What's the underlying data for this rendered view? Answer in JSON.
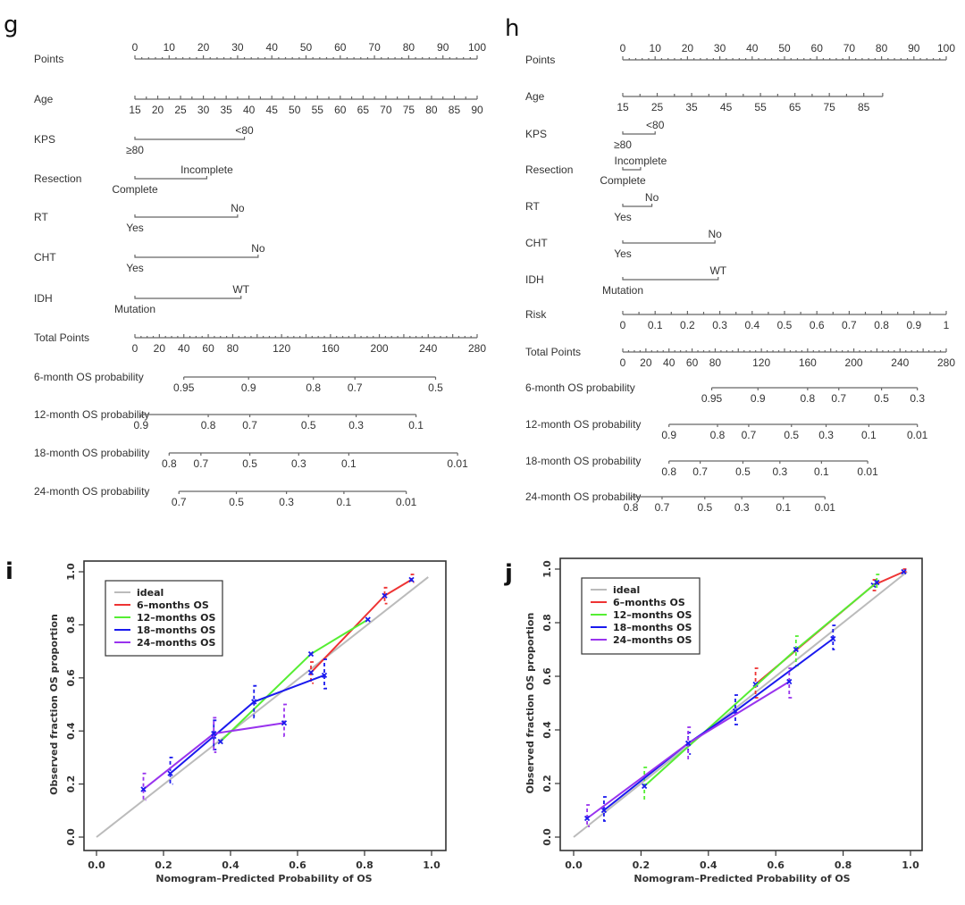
{
  "panels": {
    "g": {
      "letter": "g",
      "rows": [
        {
          "label": "Points",
          "kind": "scale",
          "ticks": [
            "0",
            "10",
            "20",
            "30",
            "40",
            "50",
            "60",
            "70",
            "80",
            "90",
            "100"
          ]
        },
        {
          "label": "Age",
          "kind": "scale-below",
          "ticks": [
            "15",
            "20",
            "25",
            "30",
            "35",
            "40",
            "45",
            "50",
            "55",
            "60",
            "65",
            "70",
            "75",
            "80",
            "85",
            "90"
          ],
          "points_range": [
            0,
            100
          ]
        },
        {
          "label": "KPS",
          "kind": "categorical",
          "low": "≥80",
          "high": "<80",
          "points": 32
        },
        {
          "label": "Resection",
          "kind": "categorical",
          "low": "Complete",
          "high": "Incomplete",
          "points": 21
        },
        {
          "label": "RT",
          "kind": "categorical",
          "low": "Yes",
          "high": "No",
          "points": 30
        },
        {
          "label": "CHT",
          "kind": "categorical",
          "low": "Yes",
          "high": "No",
          "points": 36
        },
        {
          "label": "IDH",
          "kind": "categorical",
          "low": "Mutation",
          "high": "WT",
          "points": 31
        },
        {
          "label": "Total Points",
          "kind": "scale-below",
          "ticks": [
            "0",
            "20",
            "40",
            "60",
            "80",
            "120",
            "160",
            "200",
            "240",
            "280"
          ],
          "tick_values": [
            0,
            20,
            40,
            60,
            80,
            120,
            160,
            200,
            240,
            280
          ],
          "max": 280
        },
        {
          "label": "6-month OS probability",
          "kind": "prob",
          "ticks": [
            "0.95",
            "0.9",
            "0.8",
            "0.7",
            "0.5"
          ],
          "tick_totals": [
            40,
            93,
            146,
            180,
            246
          ]
        },
        {
          "label": "12-month OS probability",
          "kind": "prob",
          "ticks": [
            "0.9",
            "0.8",
            "0.7",
            "0.5",
            "0.3",
            "0.1"
          ],
          "tick_totals": [
            5,
            60,
            94,
            142,
            181,
            230
          ]
        },
        {
          "label": "18-month OS probability",
          "kind": "prob",
          "ticks": [
            "0.8",
            "0.7",
            "0.5",
            "0.3",
            "0.1",
            "0.01"
          ],
          "tick_totals": [
            28,
            54,
            94,
            134,
            175,
            264
          ]
        },
        {
          "label": "24-month OS probability",
          "kind": "prob",
          "ticks": [
            "0.7",
            "0.5",
            "0.3",
            "0.1",
            "0.01"
          ],
          "tick_totals": [
            36,
            83,
            124,
            171,
            222
          ]
        }
      ]
    },
    "h": {
      "letter": "h",
      "rows": [
        {
          "label": "Points",
          "kind": "scale",
          "ticks": [
            "0",
            "10",
            "20",
            "30",
            "40",
            "50",
            "60",
            "70",
            "80",
            "90",
            "100"
          ]
        },
        {
          "label": "Age",
          "kind": "scale-below",
          "ticks": [
            "15",
            "25",
            "35",
            "45",
            "55",
            "65",
            "75",
            "85"
          ],
          "points_range": [
            0,
            74.5
          ]
        },
        {
          "label": "KPS",
          "kind": "categorical",
          "low": "≥80",
          "high": "<80",
          "points": 10
        },
        {
          "label": "Resection",
          "kind": "categorical",
          "low": "Complete",
          "high": "Incomplete",
          "points": 5.5
        },
        {
          "label": "RT",
          "kind": "categorical",
          "low": "Yes",
          "high": "No",
          "points": 9
        },
        {
          "label": "CHT",
          "kind": "categorical",
          "low": "Yes",
          "high": "No",
          "points": 28.5
        },
        {
          "label": "IDH",
          "kind": "categorical",
          "low": "Mutation",
          "high": "WT",
          "points": 29.5
        },
        {
          "label": "Risk",
          "kind": "scale-below",
          "ticks": [
            "0",
            "0.1",
            "0.2",
            "0.3",
            "0.4",
            "0.5",
            "0.6",
            "0.7",
            "0.8",
            "0.9",
            "1"
          ]
        },
        {
          "label": "Total Points",
          "kind": "scale-below",
          "ticks": [
            "0",
            "20",
            "40",
            "60",
            "80",
            "120",
            "160",
            "200",
            "240",
            "280"
          ],
          "tick_values": [
            0,
            20,
            40,
            60,
            80,
            120,
            160,
            200,
            240,
            280
          ],
          "max": 280
        },
        {
          "label": "6-month OS probability",
          "kind": "prob",
          "ticks": [
            "0.95",
            "0.9",
            "0.8",
            "0.7",
            "0.5",
            "0.3"
          ],
          "tick_totals": [
            77,
            117,
            160,
            187,
            224,
            255
          ]
        },
        {
          "label": "12-month OS probability",
          "kind": "prob",
          "ticks": [
            "0.9",
            "0.8",
            "0.7",
            "0.5",
            "0.3",
            "0.1",
            "0.01"
          ],
          "tick_totals": [
            40,
            82,
            109,
            146,
            176,
            213,
            255
          ]
        },
        {
          "label": "18-month OS probability",
          "kind": "prob",
          "ticks": [
            "0.8",
            "0.7",
            "0.5",
            "0.3",
            "0.1",
            "0.01"
          ],
          "tick_totals": [
            40,
            67,
            104,
            136,
            172,
            212
          ]
        },
        {
          "label": "24-month OS probability",
          "kind": "prob",
          "ticks": [
            "0.8",
            "0.7",
            "0.5",
            "0.3",
            "0.1",
            "0.01"
          ],
          "tick_totals": [
            7,
            34,
            71,
            103,
            139,
            175
          ]
        }
      ]
    }
  },
  "chart_data": [
    {
      "id": "i",
      "type": "line",
      "letter": "i",
      "title": "",
      "xlabel": "Nomogram–Predicted Probability of OS",
      "ylabel": "Observed fraction OS proportion",
      "xlim": [
        0,
        1
      ],
      "ylim": [
        0,
        1
      ],
      "xticks": [
        "0.0",
        "0.2",
        "0.4",
        "0.6",
        "0.8",
        "1.0"
      ],
      "yticks": [
        "0.0",
        "0.2",
        "0.4",
        "0.6",
        "0.8",
        "1.0"
      ],
      "grid": false,
      "legend_position": "top-left",
      "series": [
        {
          "name": "ideal",
          "color": "#bbbbbb",
          "x": [
            0,
            0.99
          ],
          "y": [
            0,
            0.98
          ],
          "error_low": [],
          "error_high": []
        },
        {
          "name": "6–months OS",
          "color": "#ee3333",
          "x": [
            0.64,
            0.86,
            0.94
          ],
          "y": [
            0.62,
            0.91,
            0.97
          ],
          "error_low": [
            0.58,
            0.88,
            0.96
          ],
          "error_high": [
            0.66,
            0.94,
            0.99
          ]
        },
        {
          "name": "12–months OS",
          "color": "#55ee33",
          "x": [
            0.37,
            0.64,
            0.81
          ],
          "y": [
            0.36,
            0.69,
            0.82
          ],
          "error_low": [],
          "error_high": []
        },
        {
          "name": "18–months OS",
          "color": "#1a1aee",
          "x": [
            0.22,
            0.35,
            0.47,
            0.68
          ],
          "y": [
            0.24,
            0.38,
            0.51,
            0.61
          ],
          "error_low": [
            0.2,
            0.33,
            0.45,
            0.56
          ],
          "error_high": [
            0.3,
            0.44,
            0.57,
            0.67
          ]
        },
        {
          "name": "24–months OS",
          "color": "#9933ee",
          "x": [
            0.14,
            0.35,
            0.56
          ],
          "y": [
            0.18,
            0.39,
            0.43
          ],
          "error_low": [
            0.14,
            0.32,
            0.38
          ],
          "error_high": [
            0.24,
            0.45,
            0.5
          ]
        }
      ]
    },
    {
      "id": "j",
      "type": "line",
      "letter": "j",
      "title": "",
      "xlabel": "Nomogram–Predicted Probability of OS",
      "ylabel": "Observed fraction OS proportion",
      "xlim": [
        0,
        1
      ],
      "ylim": [
        0,
        1
      ],
      "xticks": [
        "0.0",
        "0.2",
        "0.4",
        "0.6",
        "0.8",
        "1.0"
      ],
      "yticks": [
        "0.0",
        "0.2",
        "0.4",
        "0.6",
        "0.8",
        "1.0"
      ],
      "grid": false,
      "legend_position": "top-left",
      "series": [
        {
          "name": "ideal",
          "color": "#bbbbbb",
          "x": [
            0,
            0.99
          ],
          "y": [
            0,
            0.99
          ],
          "error_low": [],
          "error_high": []
        },
        {
          "name": "6–months OS",
          "color": "#ee3333",
          "x": [
            0.54,
            0.89,
            0.98
          ],
          "y": [
            0.57,
            0.94,
            0.99
          ],
          "error_low": [
            0.52,
            0.92,
            0.99
          ],
          "error_high": [
            0.63,
            0.96,
            1.0
          ]
        },
        {
          "name": "12–months OS",
          "color": "#55ee33",
          "x": [
            0.21,
            0.66,
            0.9
          ],
          "y": [
            0.19,
            0.7,
            0.95
          ],
          "error_low": [
            0.14,
            0.64,
            0.93
          ],
          "error_high": [
            0.26,
            0.75,
            0.98
          ]
        },
        {
          "name": "18–months OS",
          "color": "#1a1aee",
          "x": [
            0.09,
            0.34,
            0.48,
            0.77
          ],
          "y": [
            0.1,
            0.35,
            0.47,
            0.74
          ],
          "error_low": [
            0.06,
            0.31,
            0.42,
            0.7
          ],
          "error_high": [
            0.15,
            0.39,
            0.53,
            0.79
          ]
        },
        {
          "name": "24–months OS",
          "color": "#9933ee",
          "x": [
            0.04,
            0.34,
            0.64
          ],
          "y": [
            0.07,
            0.35,
            0.58
          ],
          "error_low": [
            0.04,
            0.29,
            0.52
          ],
          "error_high": [
            0.12,
            0.41,
            0.63
          ]
        }
      ]
    }
  ]
}
